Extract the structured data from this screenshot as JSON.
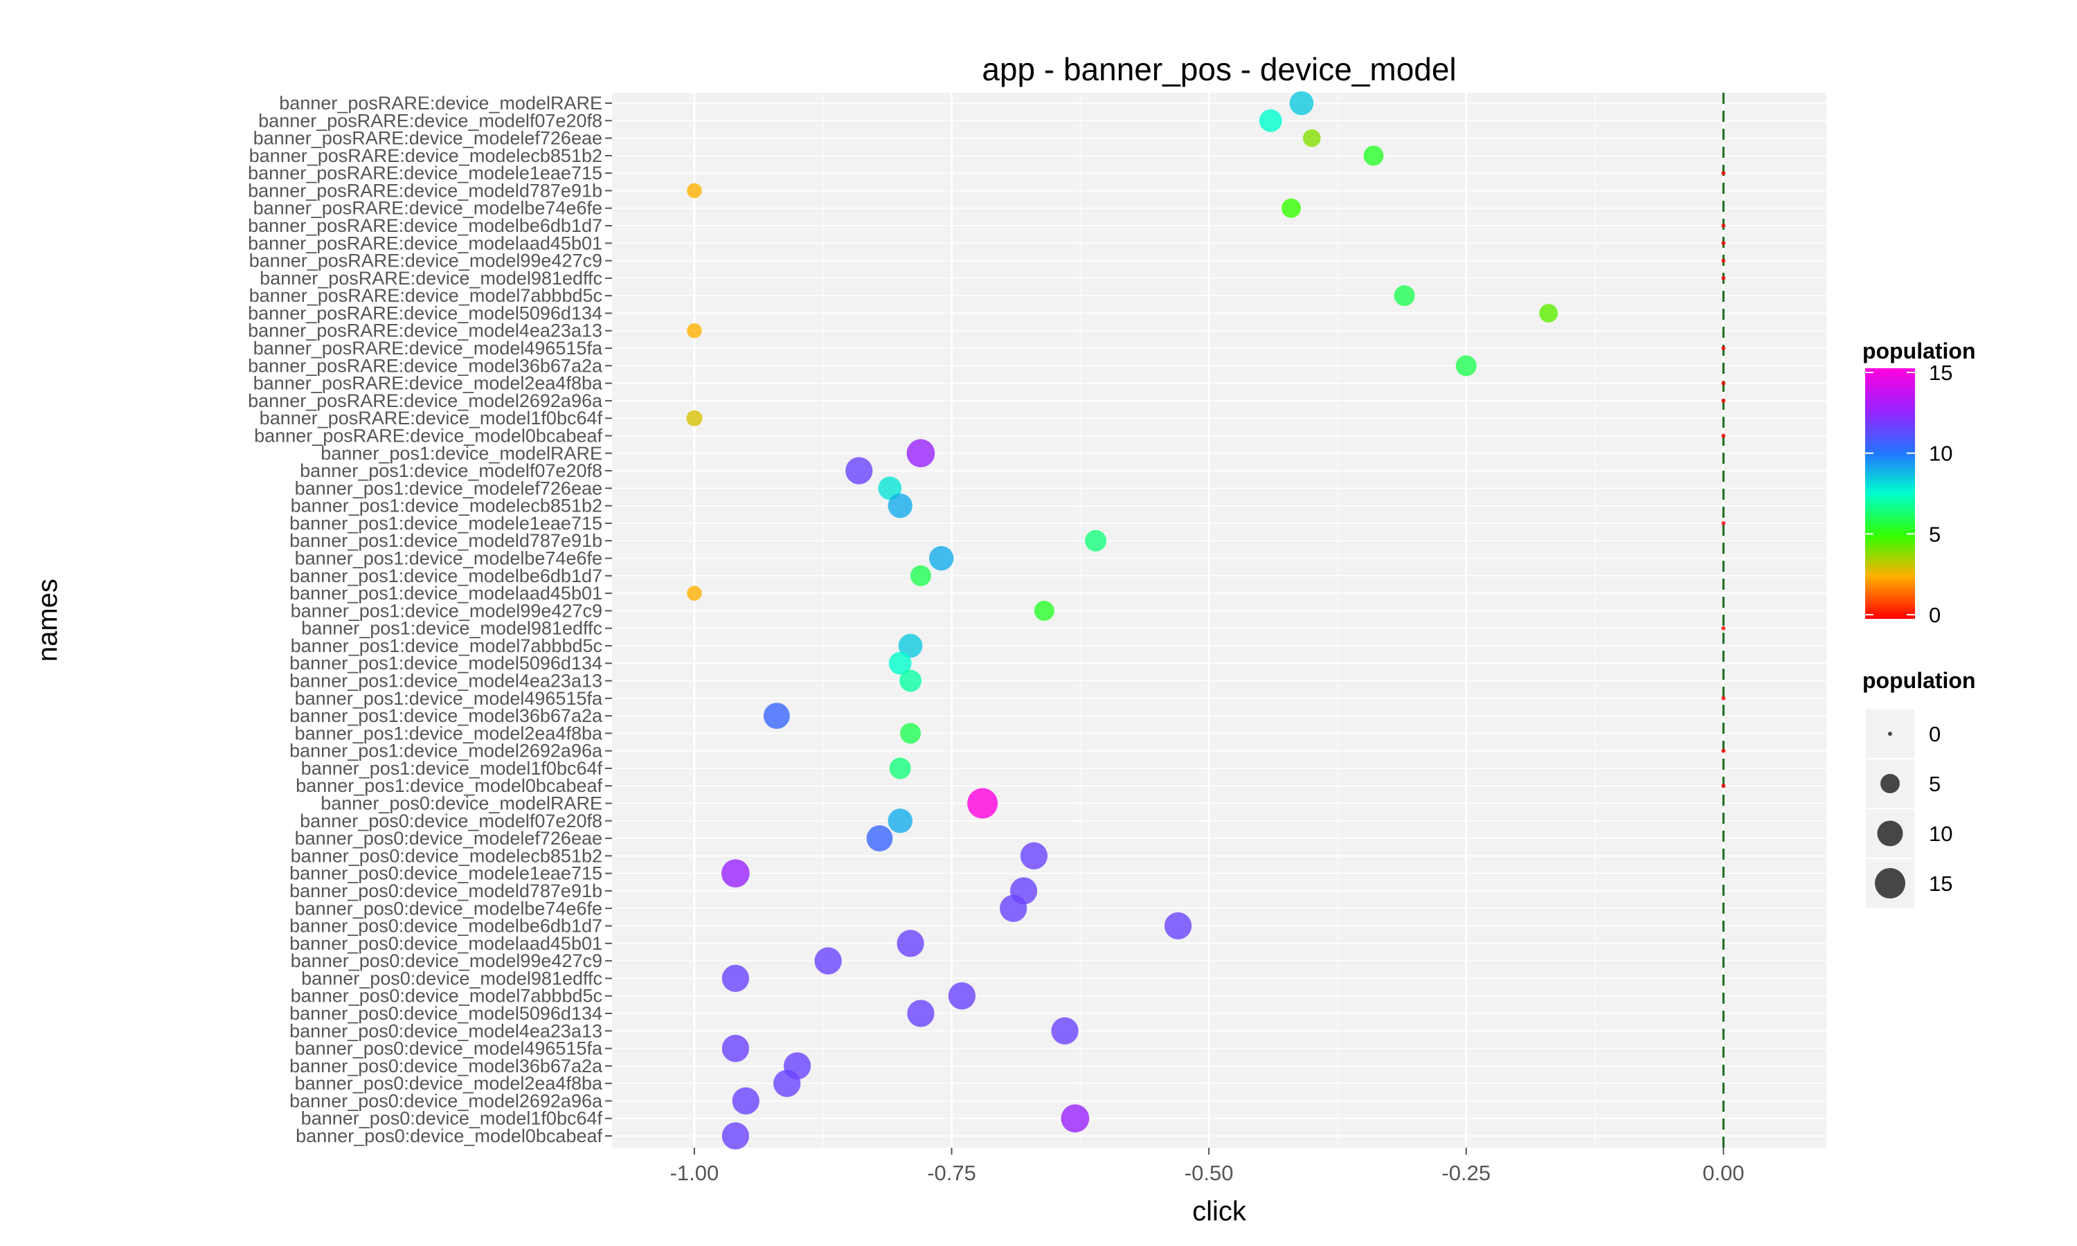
{
  "chart_data": {
    "type": "scatter",
    "title": "app - banner_pos - device_model",
    "xlabel": "click",
    "ylabel": "names",
    "xlim": [
      -1.08,
      0.1
    ],
    "x_ticks": [
      -1.0,
      -0.75,
      -0.5,
      -0.25,
      0.0
    ],
    "x_tick_labels": [
      "-1.00",
      "-0.75",
      "-0.50",
      "-0.25",
      "0.00"
    ],
    "reference_line": {
      "x": 0,
      "style": "dashed",
      "color": "#1a6b1a"
    },
    "grid": true,
    "legend_position": "right",
    "color_legend": {
      "title": "population",
      "ticks": [
        0,
        5,
        10,
        15
      ],
      "colors": [
        "#ff0000",
        "#ffb000",
        "#33ff00",
        "#00ffcc",
        "#2277ff",
        "#9922ff",
        "#ff00dd"
      ]
    },
    "size_legend": {
      "title": "population",
      "values": [
        0,
        5,
        10,
        15
      ]
    },
    "categories": [
      "banner_posRARE:device_modelRARE",
      "banner_posRARE:device_modelf07e20f8",
      "banner_posRARE:device_modelef726eae",
      "banner_posRARE:device_modelecb851b2",
      "banner_posRARE:device_modele1eae715",
      "banner_posRARE:device_modeld787e91b",
      "banner_posRARE:device_modelbe74e6fe",
      "banner_posRARE:device_modelbe6db1d7",
      "banner_posRARE:device_modelaad45b01",
      "banner_posRARE:device_model99e427c9",
      "banner_posRARE:device_model981edffc",
      "banner_posRARE:device_model7abbbd5c",
      "banner_posRARE:device_model5096d134",
      "banner_posRARE:device_model4ea23a13",
      "banner_posRARE:device_model496515fa",
      "banner_posRARE:device_model36b67a2a",
      "banner_posRARE:device_model2ea4f8ba",
      "banner_posRARE:device_model2692a96a",
      "banner_posRARE:device_model1f0bc64f",
      "banner_posRARE:device_model0bcabeaf",
      "banner_pos1:device_modelRARE",
      "banner_pos1:device_modelf07e20f8",
      "banner_pos1:device_modelef726eae",
      "banner_pos1:device_modelecb851b2",
      "banner_pos1:device_modele1eae715",
      "banner_pos1:device_modeld787e91b",
      "banner_pos1:device_modelbe74e6fe",
      "banner_pos1:device_modelbe6db1d7",
      "banner_pos1:device_modelaad45b01",
      "banner_pos1:device_model99e427c9",
      "banner_pos1:device_model981edffc",
      "banner_pos1:device_model7abbbd5c",
      "banner_pos1:device_model5096d134",
      "banner_pos1:device_model4ea23a13",
      "banner_pos1:device_model496515fa",
      "banner_pos1:device_model36b67a2a",
      "banner_pos1:device_model2ea4f8ba",
      "banner_pos1:device_model2692a96a",
      "banner_pos1:device_model1f0bc64f",
      "banner_pos1:device_model0bcabeaf",
      "banner_pos0:device_modelRARE",
      "banner_pos0:device_modelf07e20f8",
      "banner_pos0:device_modelef726eae",
      "banner_pos0:device_modelecb851b2",
      "banner_pos0:device_modele1eae715",
      "banner_pos0:device_modeld787e91b",
      "banner_pos0:device_modelbe74e6fe",
      "banner_pos0:device_modelbe6db1d7",
      "banner_pos0:device_modelaad45b01",
      "banner_pos0:device_model99e427c9",
      "banner_pos0:device_model981edffc",
      "banner_pos0:device_model7abbbd5c",
      "banner_pos0:device_model5096d134",
      "banner_pos0:device_model4ea23a13",
      "banner_pos0:device_model496515fa",
      "banner_pos0:device_model36b67a2a",
      "banner_pos0:device_model2ea4f8ba",
      "banner_pos0:device_model2692a96a",
      "banner_pos0:device_model1f0bc64f",
      "banner_pos0:device_model0bcabeaf"
    ],
    "x": [
      -0.41,
      -0.44,
      -0.4,
      -0.34,
      0.0,
      -1.0,
      -0.42,
      0.0,
      0.0,
      0.0,
      0.0,
      -0.31,
      -0.17,
      -1.0,
      0.0,
      -0.25,
      0.0,
      0.0,
      -1.0,
      0.0,
      -0.78,
      -0.84,
      -0.81,
      -0.8,
      0.0,
      -0.61,
      -0.76,
      -0.78,
      -1.0,
      -0.66,
      0.0,
      -0.79,
      -0.8,
      -0.79,
      0.0,
      -0.92,
      -0.79,
      0.0,
      -0.8,
      0.0,
      -0.72,
      -0.8,
      -0.82,
      -0.67,
      -0.96,
      -0.68,
      -0.69,
      -0.53,
      -0.79,
      -0.87,
      -0.96,
      -0.74,
      -0.78,
      -0.64,
      -0.96,
      -0.9,
      -0.91,
      -0.95,
      -0.63,
      -0.96
    ],
    "population": [
      8.5,
      7.5,
      4.0,
      5.5,
      0.0,
      2.5,
      5.0,
      0.0,
      0.0,
      0.0,
      0.0,
      6.0,
      4.5,
      2.5,
      0.0,
      6.0,
      0.0,
      0.0,
      3.0,
      0.0,
      12.5,
      11.5,
      8.0,
      9.0,
      0.0,
      6.5,
      9.0,
      6.0,
      2.5,
      5.5,
      0.0,
      8.5,
      7.5,
      7.0,
      0.0,
      10.5,
      6.0,
      0.0,
      6.5,
      0.0,
      15.0,
      9.0,
      10.5,
      11.5,
      12.5,
      11.5,
      11.5,
      11.5,
      11.5,
      11.5,
      11.5,
      11.5,
      11.5,
      11.5,
      11.5,
      11.5,
      11.5,
      11.5,
      12.5,
      11.5
    ]
  }
}
